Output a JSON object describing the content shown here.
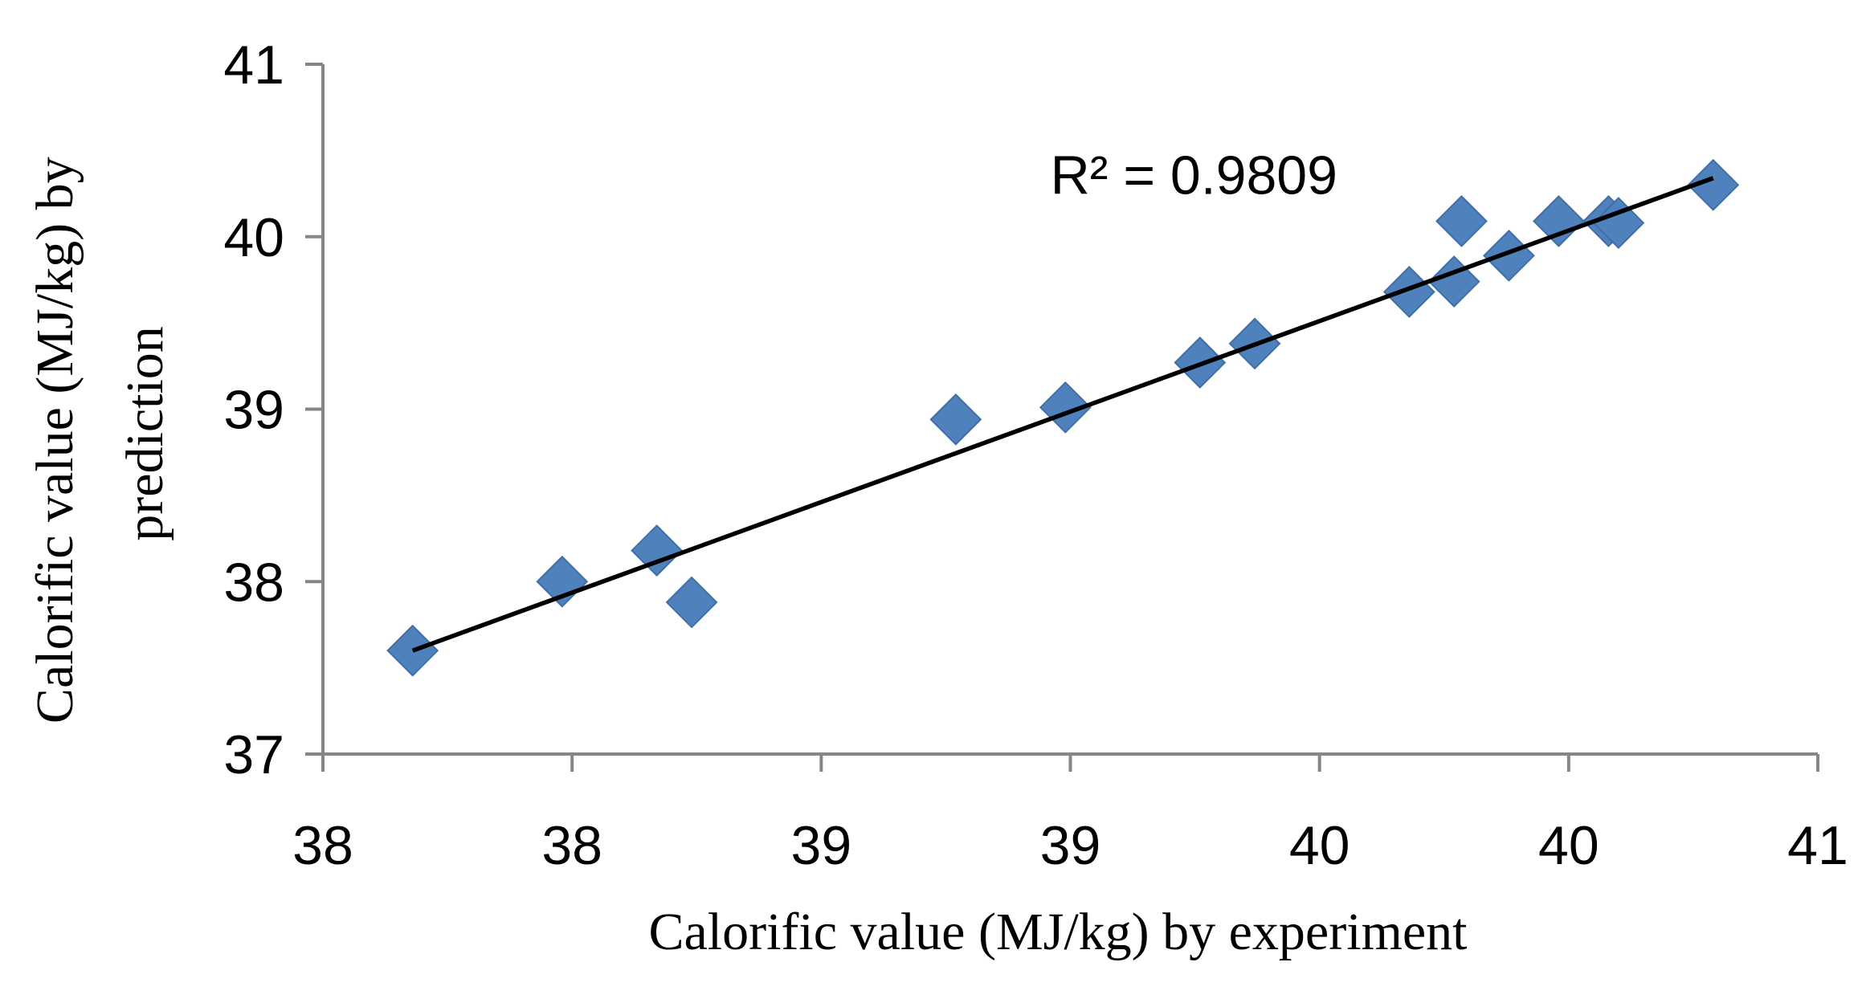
{
  "chart_data": {
    "type": "scatter",
    "title": "",
    "xlabel": "Calorific value (MJ/kg) by experiment",
    "ylabel_lines": [
      "Calorific value (MJ/kg) by",
      "prediction"
    ],
    "xlim": [
      37.5,
      40.5
    ],
    "ylim": [
      37,
      41
    ],
    "x_ticks": [
      {
        "value": 37.5,
        "label": "38"
      },
      {
        "value": 38.0,
        "label": "38"
      },
      {
        "value": 38.5,
        "label": "39"
      },
      {
        "value": 39.0,
        "label": "39"
      },
      {
        "value": 39.5,
        "label": "40"
      },
      {
        "value": 40.0,
        "label": "40"
      },
      {
        "value": 40.5,
        "label": "41"
      }
    ],
    "y_ticks": [
      {
        "value": 37,
        "label": "37"
      },
      {
        "value": 38,
        "label": "38"
      },
      {
        "value": 39,
        "label": "39"
      },
      {
        "value": 40,
        "label": "40"
      },
      {
        "value": 41,
        "label": "41"
      }
    ],
    "series": [
      {
        "name": "Calorific value",
        "color": "#4F81BD",
        "marker": "diamond",
        "points": [
          {
            "x": 37.68,
            "y": 37.6
          },
          {
            "x": 37.98,
            "y": 38.0
          },
          {
            "x": 38.17,
            "y": 38.18
          },
          {
            "x": 38.24,
            "y": 37.88
          },
          {
            "x": 38.77,
            "y": 38.94
          },
          {
            "x": 38.99,
            "y": 39.01
          },
          {
            "x": 39.26,
            "y": 39.27
          },
          {
            "x": 39.37,
            "y": 39.38
          },
          {
            "x": 39.68,
            "y": 39.68
          },
          {
            "x": 39.77,
            "y": 39.74
          },
          {
            "x": 39.785,
            "y": 40.09
          },
          {
            "x": 39.88,
            "y": 39.89
          },
          {
            "x": 39.98,
            "y": 40.09
          },
          {
            "x": 40.08,
            "y": 40.09
          },
          {
            "x": 40.1,
            "y": 40.08
          },
          {
            "x": 40.29,
            "y": 40.3
          }
        ]
      }
    ],
    "trendline": {
      "type": "linear",
      "color": "#000000",
      "x_start": 37.68,
      "y_start": 37.6,
      "x_end": 40.29,
      "y_end": 40.34
    },
    "annotations": [
      {
        "text": "R² = 0.9809",
        "x": 38.96,
        "y": 40.36
      }
    ],
    "grid": false
  }
}
